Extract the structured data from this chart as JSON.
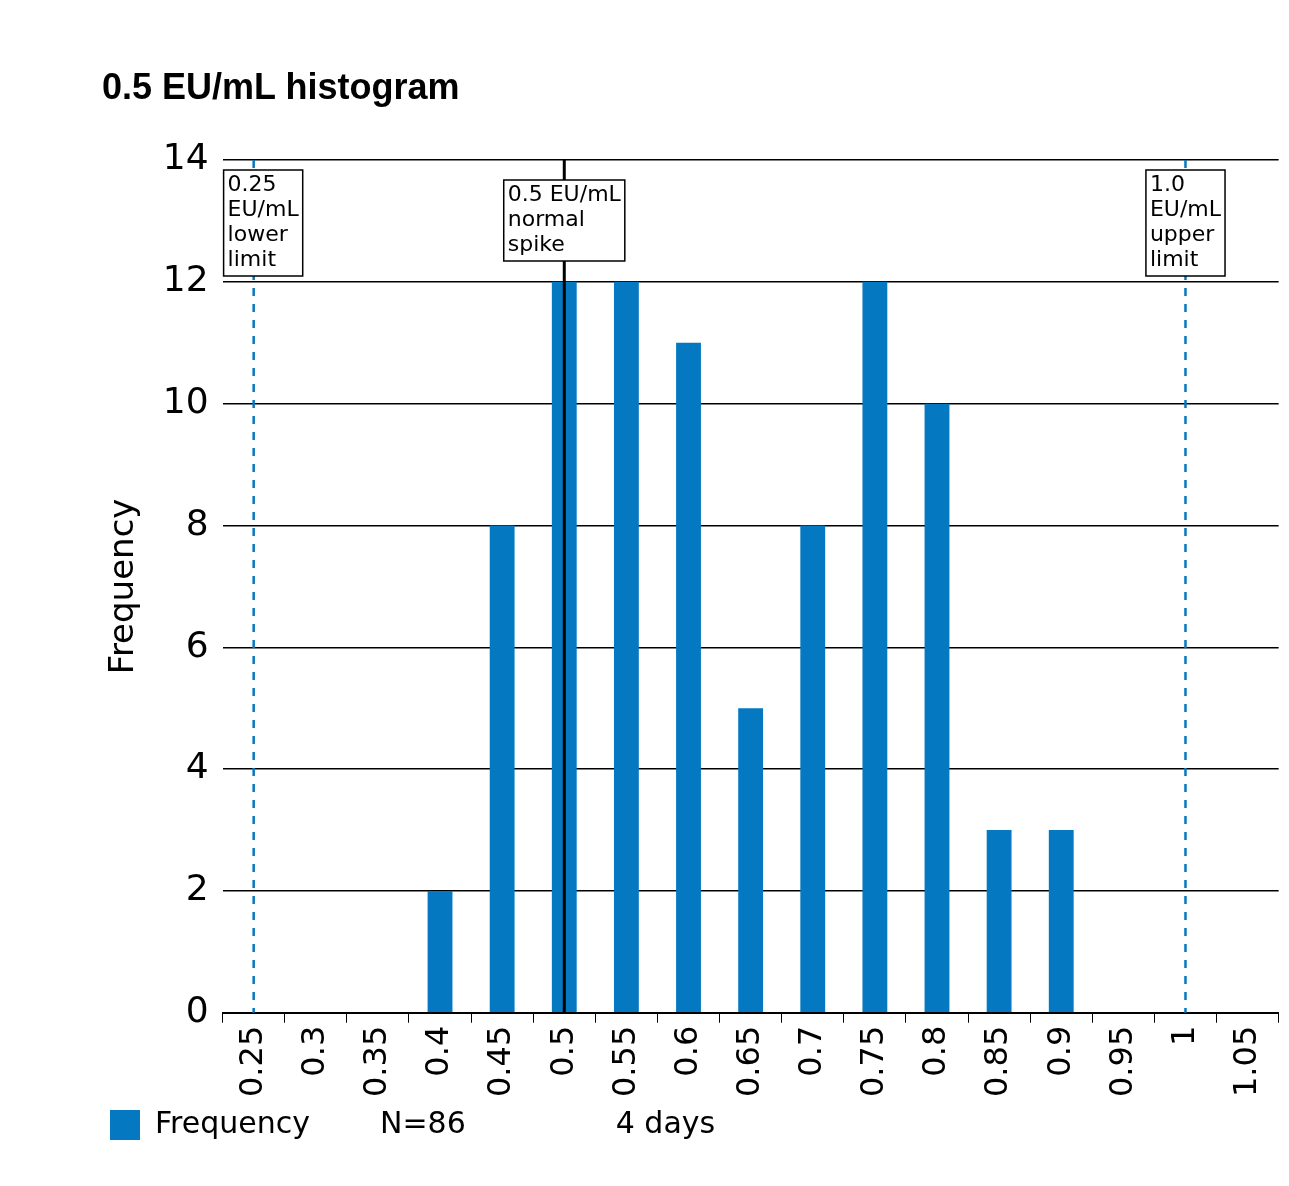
{
  "chart_data": {
    "type": "bar",
    "title": "0.5 EU/mL histogram",
    "ylabel": "Frequency",
    "categories": [
      "0.25",
      "0.3",
      "0.35",
      "0.4",
      "0.45",
      "0.5",
      "0.55",
      "0.6",
      "0.65",
      "0.7",
      "0.75",
      "0.8",
      "0.85",
      "0.9",
      "0.95",
      "1",
      "1.05"
    ],
    "series": [
      {
        "name": "Frequency",
        "color": "#0479c1",
        "values": [
          0,
          0,
          0,
          2,
          8,
          12,
          12,
          11,
          5,
          8,
          12,
          10,
          3,
          3,
          0,
          0,
          0
        ]
      }
    ],
    "ylim": [
      0,
      14
    ],
    "yticks": [
      0,
      2,
      4,
      6,
      8,
      10,
      12,
      14
    ],
    "grid": "y",
    "legend": "bottom",
    "ref_lines": [
      {
        "axis": "x",
        "value": "0.25",
        "label": "0.25 EU/mL lower limit",
        "color": "#0479c1",
        "line_style": "dashed"
      },
      {
        "axis": "x",
        "value": "0.5",
        "label": "0.5 EU/mL normal spike",
        "color": "#000000",
        "line_style": "solid"
      },
      {
        "axis": "x",
        "value": "1",
        "label": "1.0 EU/mL upper limit",
        "color": "#0479c1",
        "line_style": "dashed"
      }
    ],
    "annotations": [
      "N=86",
      "4 days"
    ]
  }
}
